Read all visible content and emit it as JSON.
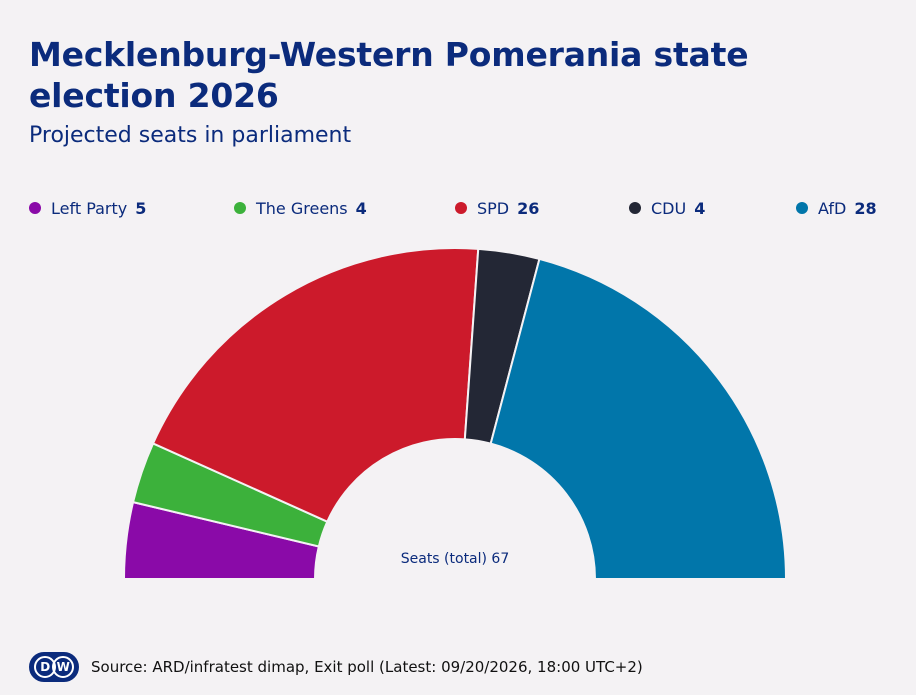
{
  "header": {
    "title": "Mecklenburg-Western Pomerania state election 2026",
    "subtitle": "Projected seats in parliament"
  },
  "legend": [
    {
      "label": "Left Party",
      "value": "5"
    },
    {
      "label": "The Greens",
      "value": "4"
    },
    {
      "label": "SPD",
      "value": "26"
    },
    {
      "label": "CDU",
      "value": "4"
    },
    {
      "label": "AfD",
      "value": "28"
    }
  ],
  "center_label": "Seats (total) 67",
  "footer": {
    "logo_text": "DW",
    "source": "Source: ARD/infratest dimap, Exit poll (Latest: 09/20/2026, 18:00 UTC+2)"
  },
  "chart_data": {
    "type": "pie",
    "subtype": "semicircle",
    "title": "Mecklenburg-Western Pomerania state election 2026",
    "subtitle": "Projected seats in parliament",
    "total": 67,
    "legend_position": "top",
    "series": [
      {
        "name": "Left Party",
        "value": 5,
        "color": "#8a0aa8"
      },
      {
        "name": "The Greens",
        "value": 4,
        "color": "#3cb13b"
      },
      {
        "name": "SPD",
        "value": 26,
        "color": "#cc1a2b"
      },
      {
        "name": "CDU",
        "value": 4,
        "color": "#232735"
      },
      {
        "name": "AfD",
        "value": 28,
        "color": "#0176aa"
      }
    ]
  }
}
